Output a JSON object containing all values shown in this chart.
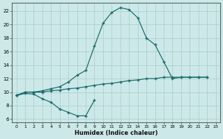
{
  "bg_color": "#cce8e8",
  "line_color": "#1a6b6b",
  "xlabel": "Humidex (Indice chaleur)",
  "xlim": [
    -0.5,
    23.5
  ],
  "ylim": [
    5.5,
    23.2
  ],
  "xtick_vals": [
    0,
    1,
    2,
    3,
    4,
    5,
    6,
    7,
    8,
    9,
    10,
    11,
    12,
    13,
    14,
    15,
    16,
    17,
    18,
    19,
    20,
    21,
    22,
    23
  ],
  "ytick_vals": [
    6,
    8,
    10,
    12,
    14,
    16,
    18,
    20,
    22
  ],
  "curve_upper_x": [
    0,
    1,
    2,
    3,
    4,
    5,
    6,
    7,
    8,
    9,
    10,
    11,
    12,
    13,
    14,
    15,
    16,
    17,
    18,
    19,
    20,
    21,
    22
  ],
  "curve_upper_y": [
    9.5,
    10.0,
    10.0,
    10.2,
    10.5,
    10.8,
    11.5,
    12.5,
    13.2,
    16.8,
    20.2,
    21.8,
    22.5,
    22.2,
    21.0,
    18.0,
    17.0,
    14.5,
    12.0,
    12.2,
    12.2,
    12.2,
    12.2
  ],
  "curve_diag_x": [
    0,
    1,
    2,
    3,
    4,
    5,
    6,
    7,
    8,
    9,
    10,
    11,
    12,
    13,
    14,
    15,
    16,
    17,
    18,
    19,
    20,
    21,
    22
  ],
  "curve_diag_y": [
    9.5,
    10.0,
    10.0,
    10.0,
    10.2,
    10.3,
    10.5,
    10.6,
    10.8,
    11.0,
    11.2,
    11.3,
    11.5,
    11.7,
    11.8,
    12.0,
    12.0,
    12.2,
    12.2,
    12.2,
    12.2,
    12.2,
    12.2
  ],
  "curve_lower_x": [
    0,
    1,
    2,
    3,
    4,
    5,
    6,
    7,
    8,
    9
  ],
  "curve_lower_y": [
    9.5,
    9.8,
    9.7,
    9.0,
    8.5,
    7.5,
    7.0,
    6.5,
    6.5,
    8.8
  ]
}
